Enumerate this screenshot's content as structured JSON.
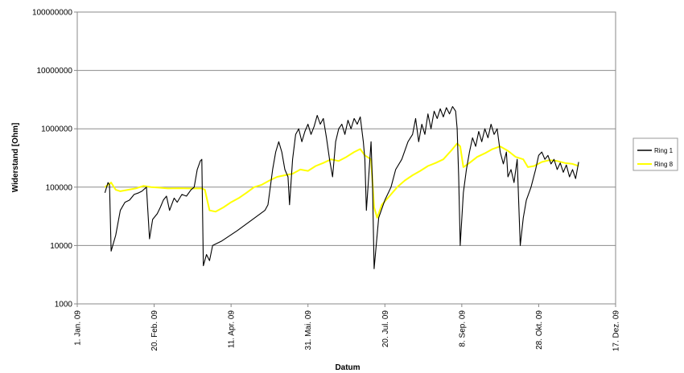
{
  "chart_data": {
    "type": "line",
    "title": "",
    "xlabel": "Datum",
    "ylabel": "Widerstand [Ohm]",
    "y_scale": "log",
    "ylim": [
      1000,
      100000000
    ],
    "xlim": [
      "2009-01-01",
      "2009-12-17"
    ],
    "grid": "horizontal major gridlines",
    "legend_position": "right",
    "y_ticks": [
      {
        "value": 1000,
        "label": "1000"
      },
      {
        "value": 10000,
        "label": "10000"
      },
      {
        "value": 100000,
        "label": "100000"
      },
      {
        "value": 1000000,
        "label": "1000000"
      },
      {
        "value": 10000000,
        "label": "10000000"
      },
      {
        "value": 100000000,
        "label": "100000000"
      }
    ],
    "x_ticks": [
      {
        "date": "2009-01-01",
        "label": "1. Jan. 09"
      },
      {
        "date": "2009-02-20",
        "label": "20. Feb. 09"
      },
      {
        "date": "2009-04-11",
        "label": "11. Apr. 09"
      },
      {
        "date": "2009-05-31",
        "label": "31. Mai. 09"
      },
      {
        "date": "2009-07-20",
        "label": "20. Jul. 09"
      },
      {
        "date": "2009-09-08",
        "label": "8. Sep. 09"
      },
      {
        "date": "2009-10-28",
        "label": "28. Okt. 09"
      },
      {
        "date": "2009-12-17",
        "label": "17. Dez. 09"
      }
    ],
    "series": [
      {
        "name": "Ring 1",
        "color": "#000000",
        "points": [
          [
            "2009-01-19",
            80000
          ],
          [
            "2009-01-21",
            120000
          ],
          [
            "2009-01-22",
            110000
          ],
          [
            "2009-01-23",
            8000
          ],
          [
            "2009-01-26",
            15000
          ],
          [
            "2009-01-29",
            40000
          ],
          [
            "2009-02-01",
            55000
          ],
          [
            "2009-02-04",
            60000
          ],
          [
            "2009-02-07",
            75000
          ],
          [
            "2009-02-10",
            80000
          ],
          [
            "2009-02-12",
            85000
          ],
          [
            "2009-02-15",
            100000
          ],
          [
            "2009-02-17",
            13000
          ],
          [
            "2009-02-19",
            28000
          ],
          [
            "2009-02-22",
            35000
          ],
          [
            "2009-02-24",
            45000
          ],
          [
            "2009-02-26",
            60000
          ],
          [
            "2009-02-28",
            70000
          ],
          [
            "2009-03-02",
            40000
          ],
          [
            "2009-03-05",
            65000
          ],
          [
            "2009-03-07",
            55000
          ],
          [
            "2009-03-10",
            75000
          ],
          [
            "2009-03-13",
            70000
          ],
          [
            "2009-03-16",
            90000
          ],
          [
            "2009-03-18",
            100000
          ],
          [
            "2009-03-20",
            200000
          ],
          [
            "2009-03-22",
            280000
          ],
          [
            "2009-03-23",
            300000
          ],
          [
            "2009-03-24",
            4500
          ],
          [
            "2009-03-26",
            7000
          ],
          [
            "2009-03-28",
            5500
          ],
          [
            "2009-03-30",
            10000
          ],
          [
            "2009-04-05",
            12000
          ],
          [
            "2009-04-15",
            18000
          ],
          [
            "2009-04-25",
            28000
          ],
          [
            "2009-05-03",
            40000
          ],
          [
            "2009-05-05",
            50000
          ],
          [
            "2009-05-08",
            200000
          ],
          [
            "2009-05-10",
            400000
          ],
          [
            "2009-05-12",
            600000
          ],
          [
            "2009-05-14",
            400000
          ],
          [
            "2009-05-16",
            200000
          ],
          [
            "2009-05-18",
            150000
          ],
          [
            "2009-05-19",
            50000
          ],
          [
            "2009-05-21",
            300000
          ],
          [
            "2009-05-23",
            800000
          ],
          [
            "2009-05-25",
            1000000
          ],
          [
            "2009-05-27",
            600000
          ],
          [
            "2009-05-29",
            900000
          ],
          [
            "2009-05-31",
            1200000
          ],
          [
            "2009-06-02",
            800000
          ],
          [
            "2009-06-04",
            1100000
          ],
          [
            "2009-06-06",
            1700000
          ],
          [
            "2009-06-08",
            1200000
          ],
          [
            "2009-06-10",
            1500000
          ],
          [
            "2009-06-12",
            700000
          ],
          [
            "2009-06-14",
            300000
          ],
          [
            "2009-06-16",
            150000
          ],
          [
            "2009-06-18",
            600000
          ],
          [
            "2009-06-20",
            1000000
          ],
          [
            "2009-06-22",
            1200000
          ],
          [
            "2009-06-24",
            800000
          ],
          [
            "2009-06-26",
            1400000
          ],
          [
            "2009-06-28",
            1000000
          ],
          [
            "2009-06-30",
            1500000
          ],
          [
            "2009-07-02",
            1200000
          ],
          [
            "2009-07-04",
            1600000
          ],
          [
            "2009-07-06",
            600000
          ],
          [
            "2009-07-07",
            300000
          ],
          [
            "2009-07-08",
            40000
          ],
          [
            "2009-07-09",
            100000
          ],
          [
            "2009-07-11",
            600000
          ],
          [
            "2009-07-12",
            100000
          ],
          [
            "2009-07-13",
            4000
          ],
          [
            "2009-07-16",
            30000
          ],
          [
            "2009-07-20",
            60000
          ],
          [
            "2009-07-24",
            100000
          ],
          [
            "2009-07-27",
            200000
          ],
          [
            "2009-07-31",
            300000
          ],
          [
            "2009-08-04",
            600000
          ],
          [
            "2009-08-07",
            800000
          ],
          [
            "2009-08-09",
            1500000
          ],
          [
            "2009-08-11",
            600000
          ],
          [
            "2009-08-13",
            1200000
          ],
          [
            "2009-08-15",
            800000
          ],
          [
            "2009-08-17",
            1800000
          ],
          [
            "2009-08-19",
            1000000
          ],
          [
            "2009-08-21",
            2000000
          ],
          [
            "2009-08-23",
            1500000
          ],
          [
            "2009-08-25",
            2200000
          ],
          [
            "2009-08-27",
            1600000
          ],
          [
            "2009-08-29",
            2300000
          ],
          [
            "2009-08-31",
            1800000
          ],
          [
            "2009-09-02",
            2400000
          ],
          [
            "2009-09-04",
            2000000
          ],
          [
            "2009-09-05",
            1000000
          ],
          [
            "2009-09-06",
            150000
          ],
          [
            "2009-09-07",
            10000
          ],
          [
            "2009-09-09",
            80000
          ],
          [
            "2009-09-11",
            200000
          ],
          [
            "2009-09-13",
            400000
          ],
          [
            "2009-09-15",
            700000
          ],
          [
            "2009-09-17",
            500000
          ],
          [
            "2009-09-19",
            900000
          ],
          [
            "2009-09-21",
            600000
          ],
          [
            "2009-09-23",
            1000000
          ],
          [
            "2009-09-25",
            700000
          ],
          [
            "2009-09-27",
            1200000
          ],
          [
            "2009-09-29",
            800000
          ],
          [
            "2009-10-01",
            1000000
          ],
          [
            "2009-10-03",
            400000
          ],
          [
            "2009-10-05",
            250000
          ],
          [
            "2009-10-07",
            400000
          ],
          [
            "2009-10-08",
            150000
          ],
          [
            "2009-10-10",
            200000
          ],
          [
            "2009-10-12",
            120000
          ],
          [
            "2009-10-14",
            300000
          ],
          [
            "2009-10-16",
            10000
          ],
          [
            "2009-10-18",
            30000
          ],
          [
            "2009-10-20",
            60000
          ],
          [
            "2009-10-23",
            100000
          ],
          [
            "2009-10-26",
            200000
          ],
          [
            "2009-10-28",
            350000
          ],
          [
            "2009-10-30",
            400000
          ],
          [
            "2009-11-01",
            300000
          ],
          [
            "2009-11-03",
            350000
          ],
          [
            "2009-11-05",
            250000
          ],
          [
            "2009-11-07",
            300000
          ],
          [
            "2009-11-09",
            200000
          ],
          [
            "2009-11-11",
            260000
          ],
          [
            "2009-11-13",
            180000
          ],
          [
            "2009-11-15",
            240000
          ],
          [
            "2009-11-17",
            150000
          ],
          [
            "2009-11-19",
            200000
          ],
          [
            "2009-11-21",
            140000
          ],
          [
            "2009-11-23",
            270000
          ]
        ]
      },
      {
        "name": "Ring 8",
        "color": "#ffff00",
        "points": [
          [
            "2009-01-19",
            100000
          ],
          [
            "2009-01-23",
            120000
          ],
          [
            "2009-01-26",
            90000
          ],
          [
            "2009-01-29",
            85000
          ],
          [
            "2009-02-03",
            90000
          ],
          [
            "2009-02-08",
            95000
          ],
          [
            "2009-02-13",
            105000
          ],
          [
            "2009-02-18",
            100000
          ],
          [
            "2009-02-23",
            98000
          ],
          [
            "2009-03-01",
            95000
          ],
          [
            "2009-03-08",
            96000
          ],
          [
            "2009-03-15",
            95000
          ],
          [
            "2009-03-23",
            95000
          ],
          [
            "2009-03-25",
            90000
          ],
          [
            "2009-03-28",
            40000
          ],
          [
            "2009-04-01",
            38000
          ],
          [
            "2009-04-06",
            45000
          ],
          [
            "2009-04-11",
            55000
          ],
          [
            "2009-04-16",
            65000
          ],
          [
            "2009-04-21",
            80000
          ],
          [
            "2009-04-26",
            100000
          ],
          [
            "2009-05-01",
            110000
          ],
          [
            "2009-05-06",
            130000
          ],
          [
            "2009-05-11",
            150000
          ],
          [
            "2009-05-16",
            160000
          ],
          [
            "2009-05-21",
            170000
          ],
          [
            "2009-05-26",
            200000
          ],
          [
            "2009-05-31",
            190000
          ],
          [
            "2009-06-05",
            230000
          ],
          [
            "2009-06-10",
            260000
          ],
          [
            "2009-06-15",
            300000
          ],
          [
            "2009-06-20",
            280000
          ],
          [
            "2009-06-25",
            330000
          ],
          [
            "2009-06-30",
            400000
          ],
          [
            "2009-07-04",
            450000
          ],
          [
            "2009-07-07",
            350000
          ],
          [
            "2009-07-11",
            300000
          ],
          [
            "2009-07-13",
            45000
          ],
          [
            "2009-07-15",
            30000
          ],
          [
            "2009-07-18",
            50000
          ],
          [
            "2009-07-23",
            70000
          ],
          [
            "2009-07-28",
            100000
          ],
          [
            "2009-08-02",
            130000
          ],
          [
            "2009-08-07",
            160000
          ],
          [
            "2009-08-12",
            190000
          ],
          [
            "2009-08-17",
            230000
          ],
          [
            "2009-08-22",
            260000
          ],
          [
            "2009-08-27",
            300000
          ],
          [
            "2009-09-01",
            420000
          ],
          [
            "2009-09-05",
            560000
          ],
          [
            "2009-09-07",
            500000
          ],
          [
            "2009-09-09",
            220000
          ],
          [
            "2009-09-13",
            260000
          ],
          [
            "2009-09-18",
            330000
          ],
          [
            "2009-09-23",
            380000
          ],
          [
            "2009-09-28",
            450000
          ],
          [
            "2009-10-03",
            500000
          ],
          [
            "2009-10-08",
            420000
          ],
          [
            "2009-10-13",
            330000
          ],
          [
            "2009-10-18",
            300000
          ],
          [
            "2009-10-21",
            220000
          ],
          [
            "2009-10-25",
            230000
          ],
          [
            "2009-10-30",
            270000
          ],
          [
            "2009-11-04",
            290000
          ],
          [
            "2009-11-09",
            280000
          ],
          [
            "2009-11-14",
            260000
          ],
          [
            "2009-11-19",
            250000
          ],
          [
            "2009-11-23",
            230000
          ]
        ]
      }
    ]
  }
}
